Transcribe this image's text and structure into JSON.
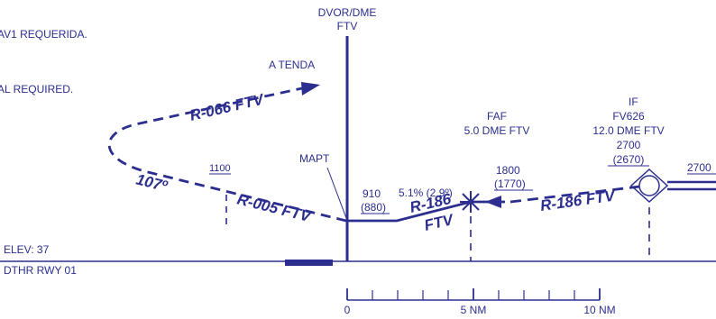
{
  "notes": {
    "note1": "AV1 REQUERIDA.",
    "note2": "AL REQUIRED."
  },
  "navaid": {
    "line1": "DVOR/DME",
    "line2": "FTV"
  },
  "labels": {
    "a_tenda": "A TENDA",
    "mapt": "MAPT",
    "elev": "ELEV: 37",
    "dthr": "DTHR RWY 01"
  },
  "courses": {
    "r066": "R-066 FTV",
    "r005": "R-005 FTV",
    "turn": "107º",
    "r186_seg_top": "R-186",
    "r186_seg_bot": "FTV",
    "r186_inbound": "R-186 FTV"
  },
  "altitudes": {
    "alt_1100": "1100",
    "mapt_alt": "910",
    "mapt_hat": "(880)",
    "faf_alt": "1800",
    "faf_hat": "(1770)",
    "if_alt": "2700",
    "if_hat": "(2670)",
    "right_alt": "2700"
  },
  "faf": {
    "name": "FAF",
    "dist": "5.0 DME FTV",
    "gradient": "5.1% (2.9º)"
  },
  "if_fix": {
    "name": "IF",
    "id": "FV626",
    "dist": "12.0 DME FTV"
  },
  "scale": {
    "l0": "0",
    "l5": "5 NM",
    "l10": "10 NM"
  },
  "colors": {
    "ink": "#2b2e8f"
  }
}
